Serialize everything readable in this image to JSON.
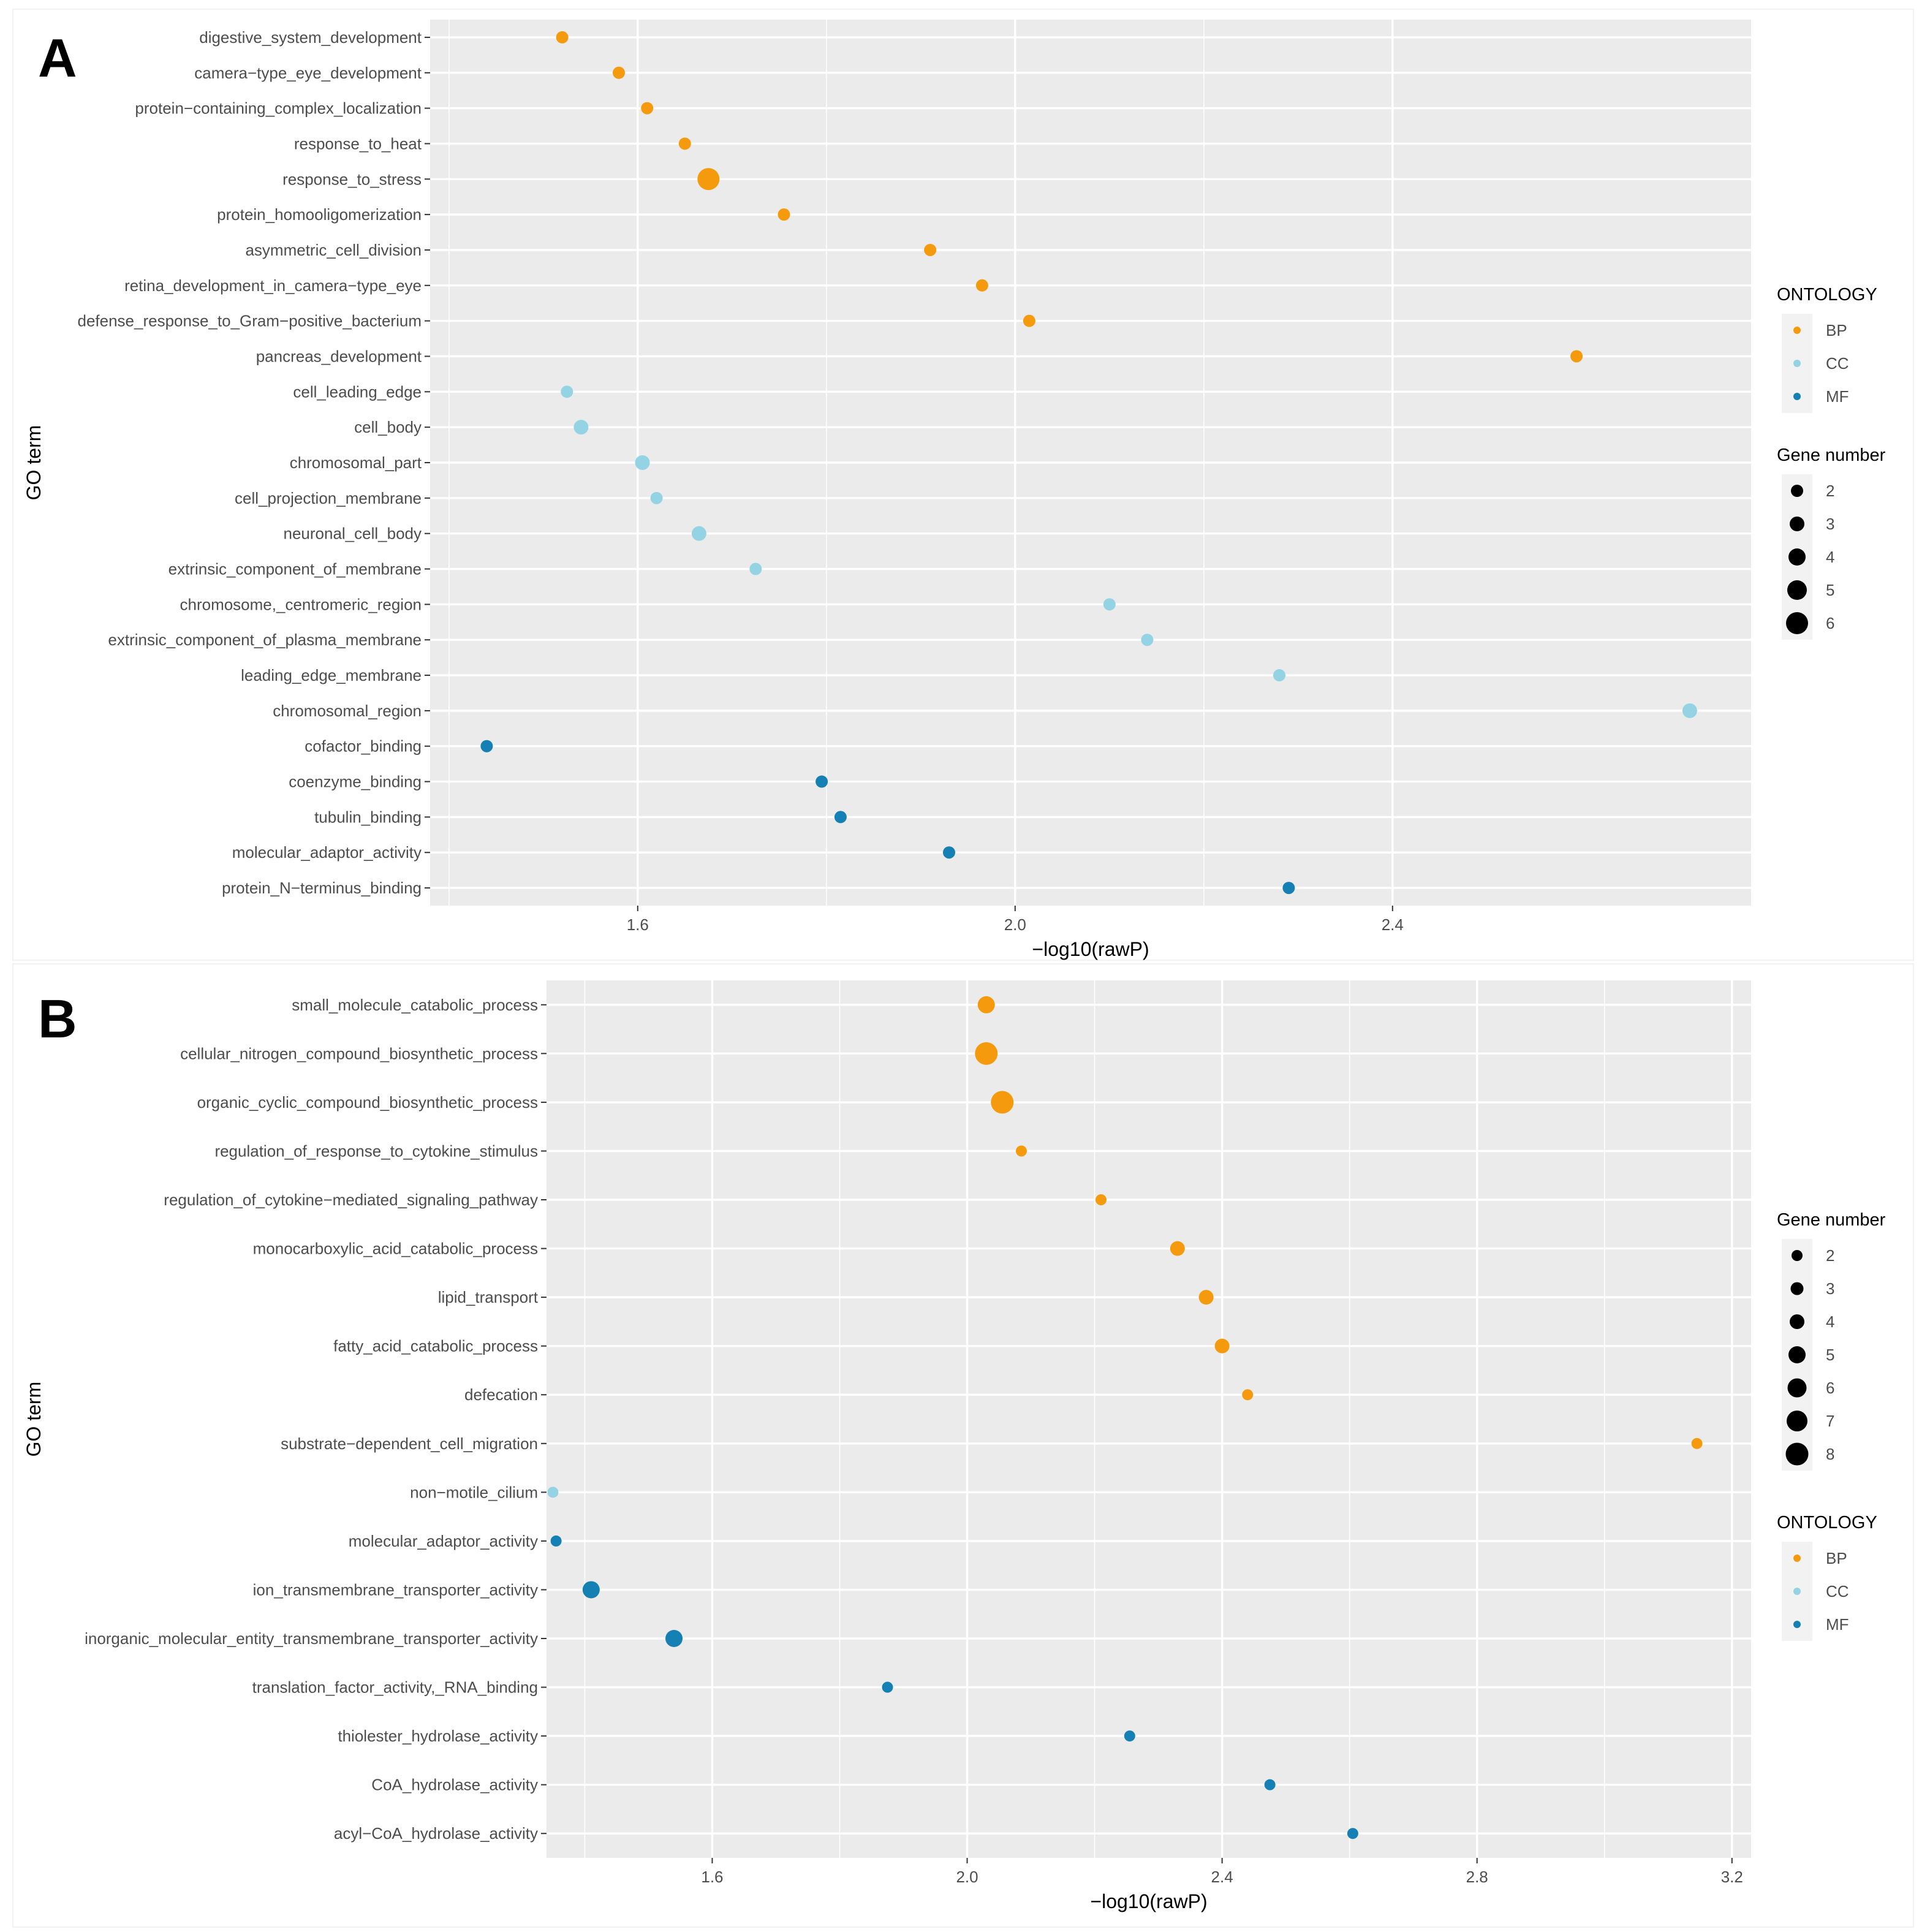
{
  "colors": {
    "BP": "#f59a0c",
    "CC": "#93d3e4",
    "MF": "#1480b3",
    "panel": "#ebebeb",
    "grid": "#ffffff",
    "text": "#4d4d4d"
  },
  "chart_data": [
    {
      "type": "scatter",
      "panel_label": "A",
      "xlabel": "−log10(rawP)",
      "ylabel": "GO term",
      "xlim": [
        1.38,
        2.78
      ],
      "x_ticks": [
        1.6,
        2.0,
        2.4
      ],
      "x_tick_labels": [
        "1.6",
        "2.0",
        "2.4"
      ],
      "legend_ontology": {
        "title": "ONTOLOGY",
        "items": [
          "BP",
          "CC",
          "MF"
        ]
      },
      "legend_size": {
        "title": "Gene number",
        "items": [
          2,
          3,
          4,
          5,
          6
        ]
      },
      "points": [
        {
          "term": "digestive_system_development",
          "x": 1.52,
          "size": 2,
          "ontology": "BP"
        },
        {
          "term": "camera−type_eye_development",
          "x": 1.58,
          "size": 2,
          "ontology": "BP"
        },
        {
          "term": "protein−containing_complex_localization",
          "x": 1.61,
          "size": 2,
          "ontology": "BP"
        },
        {
          "term": "response_to_heat",
          "x": 1.65,
          "size": 2,
          "ontology": "BP"
        },
        {
          "term": "response_to_stress",
          "x": 1.675,
          "size": 6,
          "ontology": "BP"
        },
        {
          "term": "protein_homooligomerization",
          "x": 1.755,
          "size": 2,
          "ontology": "BP"
        },
        {
          "term": "asymmetric_cell_division",
          "x": 1.91,
          "size": 2,
          "ontology": "BP"
        },
        {
          "term": "retina_development_in_camera−type_eye",
          "x": 1.965,
          "size": 2,
          "ontology": "BP"
        },
        {
          "term": "defense_response_to_Gram−positive_bacterium",
          "x": 2.015,
          "size": 2,
          "ontology": "BP"
        },
        {
          "term": "pancreas_development",
          "x": 2.595,
          "size": 2,
          "ontology": "BP"
        },
        {
          "term": "cell_leading_edge",
          "x": 1.525,
          "size": 2,
          "ontology": "CC"
        },
        {
          "term": "cell_body",
          "x": 1.54,
          "size": 3,
          "ontology": "CC"
        },
        {
          "term": "chromosomal_part",
          "x": 1.605,
          "size": 3,
          "ontology": "CC"
        },
        {
          "term": "cell_projection_membrane",
          "x": 1.62,
          "size": 2,
          "ontology": "CC"
        },
        {
          "term": "neuronal_cell_body",
          "x": 1.665,
          "size": 3,
          "ontology": "CC"
        },
        {
          "term": "extrinsic_component_of_membrane",
          "x": 1.725,
          "size": 2,
          "ontology": "CC"
        },
        {
          "term": "chromosome,_centromeric_region",
          "x": 2.1,
          "size": 2,
          "ontology": "CC"
        },
        {
          "term": "extrinsic_component_of_plasma_membrane",
          "x": 2.14,
          "size": 2,
          "ontology": "CC"
        },
        {
          "term": "leading_edge_membrane",
          "x": 2.28,
          "size": 2,
          "ontology": "CC"
        },
        {
          "term": "chromosomal_region",
          "x": 2.715,
          "size": 3,
          "ontology": "CC"
        },
        {
          "term": "cofactor_binding",
          "x": 1.44,
          "size": 2,
          "ontology": "MF"
        },
        {
          "term": "coenzyme_binding",
          "x": 1.795,
          "size": 2,
          "ontology": "MF"
        },
        {
          "term": "tubulin_binding",
          "x": 1.815,
          "size": 2,
          "ontology": "MF"
        },
        {
          "term": "molecular_adaptor_activity",
          "x": 1.93,
          "size": 2,
          "ontology": "MF"
        },
        {
          "term": "protein_N−terminus_binding",
          "x": 2.29,
          "size": 2,
          "ontology": "MF"
        }
      ]
    },
    {
      "type": "scatter",
      "panel_label": "B",
      "xlabel": "−log10(rawP)",
      "ylabel": "GO term",
      "xlim": [
        1.34,
        3.23
      ],
      "x_ticks": [
        1.6,
        2.0,
        2.4,
        2.8,
        3.2
      ],
      "x_tick_labels": [
        "1.6",
        "2.0",
        "2.4",
        "2.8",
        "3.2"
      ],
      "legend_size": {
        "title": "Gene number",
        "items": [
          2,
          3,
          4,
          5,
          6,
          7,
          8
        ]
      },
      "legend_ontology": {
        "title": "ONTOLOGY",
        "items": [
          "BP",
          "CC",
          "MF"
        ]
      },
      "points": [
        {
          "term": "small_molecule_catabolic_process",
          "x": 2.03,
          "size": 5,
          "ontology": "BP"
        },
        {
          "term": "cellular_nitrogen_compound_biosynthetic_process",
          "x": 2.03,
          "size": 8,
          "ontology": "BP"
        },
        {
          "term": "organic_cyclic_compound_biosynthetic_process",
          "x": 2.055,
          "size": 8,
          "ontology": "BP"
        },
        {
          "term": "regulation_of_response_to_cytokine_stimulus",
          "x": 2.085,
          "size": 2,
          "ontology": "BP"
        },
        {
          "term": "regulation_of_cytokine−mediated_signaling_pathway",
          "x": 2.21,
          "size": 2,
          "ontology": "BP"
        },
        {
          "term": "monocarboxylic_acid_catabolic_process",
          "x": 2.33,
          "size": 4,
          "ontology": "BP"
        },
        {
          "term": "lipid_transport",
          "x": 2.375,
          "size": 4,
          "ontology": "BP"
        },
        {
          "term": "fatty_acid_catabolic_process",
          "x": 2.4,
          "size": 4,
          "ontology": "BP"
        },
        {
          "term": "defecation",
          "x": 2.44,
          "size": 2,
          "ontology": "BP"
        },
        {
          "term": "substrate−dependent_cell_migration",
          "x": 3.145,
          "size": 2,
          "ontology": "BP"
        },
        {
          "term": "non−motile_cilium",
          "x": 1.35,
          "size": 2,
          "ontology": "CC"
        },
        {
          "term": "molecular_adaptor_activity",
          "x": 1.355,
          "size": 2,
          "ontology": "MF"
        },
        {
          "term": "ion_transmembrane_transporter_activity",
          "x": 1.41,
          "size": 5,
          "ontology": "MF"
        },
        {
          "term": "inorganic_molecular_entity_transmembrane_transporter_activity",
          "x": 1.54,
          "size": 5,
          "ontology": "MF"
        },
        {
          "term": "translation_factor_activity,_RNA_binding",
          "x": 1.875,
          "size": 2,
          "ontology": "MF"
        },
        {
          "term": "thiolester_hydrolase_activity",
          "x": 2.255,
          "size": 2,
          "ontology": "MF"
        },
        {
          "term": "CoA_hydrolase_activity",
          "x": 2.475,
          "size": 2,
          "ontology": "MF"
        },
        {
          "term": "acyl−CoA_hydrolase_activity",
          "x": 2.605,
          "size": 2,
          "ontology": "MF"
        }
      ]
    }
  ]
}
